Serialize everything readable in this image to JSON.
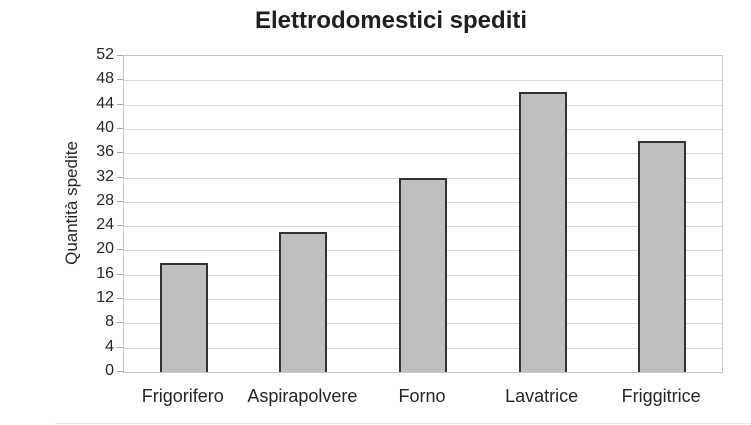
{
  "chart_data": {
    "type": "bar",
    "title": "Elettrodomestici spediti",
    "ylabel": "Quantità spedite",
    "xlabel": "",
    "categories": [
      "Frigorifero",
      "Aspirapolvere",
      "Forno",
      "Lavatrice",
      "Friggitrice"
    ],
    "values": [
      18,
      23,
      32,
      46,
      38
    ],
    "ylim": [
      0,
      52
    ],
    "ytick_step": 4,
    "grid": true,
    "legend_position": "none",
    "colors": {
      "bar_fill": "#c0c0c0",
      "bar_border": "#333333",
      "gridline": "#d9d9d9",
      "axis_border": "#c6c6c6",
      "tick_mark": "#a6a6a6",
      "text": "#262626",
      "title_text": "#1f1f1f",
      "background": "#ffffff"
    }
  }
}
